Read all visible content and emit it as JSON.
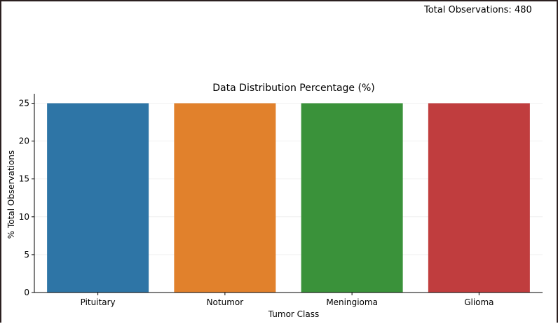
{
  "annotation": "Total Observations: 480",
  "chart_data": {
    "type": "bar",
    "title": "Data Distribution Percentage (%)",
    "xlabel": "Tumor Class",
    "ylabel": "% Total Observations",
    "categories": [
      "Pituitary",
      "Notumor",
      "Meningioma",
      "Glioma"
    ],
    "values": [
      25,
      25,
      25,
      25
    ],
    "colors": [
      "#2e75a6",
      "#e1812c",
      "#3a923a",
      "#c03d3e"
    ],
    "ylim": [
      0,
      26.25
    ],
    "yticks": [
      0,
      5,
      10,
      15,
      20,
      25
    ],
    "grid": "horizontal-faint",
    "legend": "none"
  }
}
